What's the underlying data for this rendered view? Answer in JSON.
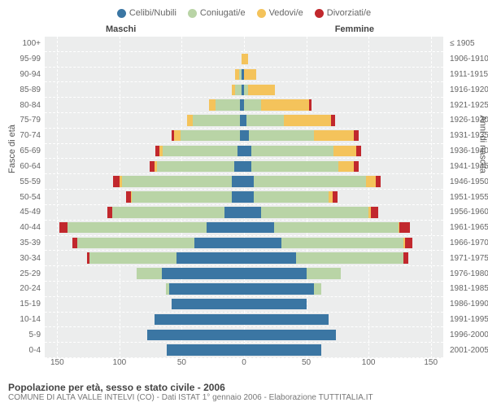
{
  "legend": {
    "items": [
      {
        "label": "Celibi/Nubili",
        "color": "#3b76a3"
      },
      {
        "label": "Coniugati/e",
        "color": "#b9d4a6"
      },
      {
        "label": "Vedovi/e",
        "color": "#f4c35b"
      },
      {
        "label": "Divorziati/e",
        "color": "#c1282d"
      }
    ]
  },
  "headers": {
    "male": "Maschi",
    "female": "Femmine"
  },
  "axis": {
    "left_title": "Fasce di età",
    "right_title": "Anni di nascita",
    "x_ticks": [
      -150,
      -100,
      -50,
      0,
      50,
      100,
      150
    ],
    "x_labels": [
      "150",
      "100",
      "50",
      "0",
      "50",
      "100",
      "150"
    ],
    "xlim": 160,
    "grid_values": [
      -150,
      -100,
      -50,
      0,
      50,
      100,
      150
    ],
    "background": "#eceded",
    "gridline_color": "#ffffff"
  },
  "rows": [
    {
      "age": "100+",
      "birth": "≤ 1905",
      "m": [
        0,
        0,
        0,
        0
      ],
      "f": [
        0,
        0,
        0,
        0
      ]
    },
    {
      "age": "95-99",
      "birth": "1906-1910",
      "m": [
        0,
        0,
        2,
        0
      ],
      "f": [
        0,
        0,
        3,
        0
      ]
    },
    {
      "age": "90-94",
      "birth": "1911-1915",
      "m": [
        2,
        2,
        3,
        0
      ],
      "f": [
        0,
        0,
        10,
        0
      ]
    },
    {
      "age": "85-89",
      "birth": "1916-1920",
      "m": [
        2,
        5,
        3,
        0
      ],
      "f": [
        0,
        3,
        22,
        0
      ]
    },
    {
      "age": "80-84",
      "birth": "1921-1925",
      "m": [
        3,
        20,
        5,
        0
      ],
      "f": [
        0,
        14,
        38,
        2
      ]
    },
    {
      "age": "75-79",
      "birth": "1926-1930",
      "m": [
        3,
        38,
        5,
        0
      ],
      "f": [
        2,
        30,
        38,
        3
      ]
    },
    {
      "age": "70-74",
      "birth": "1931-1935",
      "m": [
        3,
        48,
        5,
        2
      ],
      "f": [
        4,
        52,
        32,
        4
      ]
    },
    {
      "age": "65-69",
      "birth": "1936-1940",
      "m": [
        5,
        60,
        3,
        3
      ],
      "f": [
        6,
        66,
        18,
        4
      ]
    },
    {
      "age": "60-64",
      "birth": "1941-1945",
      "m": [
        8,
        62,
        2,
        4
      ],
      "f": [
        6,
        70,
        12,
        4
      ]
    },
    {
      "age": "55-59",
      "birth": "1946-1950",
      "m": [
        10,
        88,
        2,
        5
      ],
      "f": [
        8,
        90,
        8,
        4
      ]
    },
    {
      "age": "50-54",
      "birth": "1951-1955",
      "m": [
        10,
        80,
        1,
        4
      ],
      "f": [
        8,
        60,
        3,
        4
      ]
    },
    {
      "age": "45-49",
      "birth": "1956-1960",
      "m": [
        16,
        90,
        0,
        4
      ],
      "f": [
        14,
        86,
        2,
        6
      ]
    },
    {
      "age": "40-44",
      "birth": "1961-1965",
      "m": [
        30,
        112,
        0,
        6
      ],
      "f": [
        24,
        100,
        1,
        8
      ]
    },
    {
      "age": "35-39",
      "birth": "1966-1970",
      "m": [
        40,
        94,
        0,
        4
      ],
      "f": [
        30,
        98,
        1,
        6
      ]
    },
    {
      "age": "30-34",
      "birth": "1971-1975",
      "m": [
        54,
        70,
        0,
        2
      ],
      "f": [
        42,
        86,
        0,
        4
      ]
    },
    {
      "age": "25-29",
      "birth": "1976-1980",
      "m": [
        66,
        20,
        0,
        0
      ],
      "f": [
        50,
        28,
        0,
        0
      ]
    },
    {
      "age": "20-24",
      "birth": "1981-1985",
      "m": [
        60,
        3,
        0,
        0
      ],
      "f": [
        56,
        6,
        0,
        0
      ]
    },
    {
      "age": "15-19",
      "birth": "1986-1990",
      "m": [
        58,
        0,
        0,
        0
      ],
      "f": [
        50,
        0,
        0,
        0
      ]
    },
    {
      "age": "10-14",
      "birth": "1991-1995",
      "m": [
        72,
        0,
        0,
        0
      ],
      "f": [
        68,
        0,
        0,
        0
      ]
    },
    {
      "age": "5-9",
      "birth": "1996-2000",
      "m": [
        78,
        0,
        0,
        0
      ],
      "f": [
        74,
        0,
        0,
        0
      ]
    },
    {
      "age": "0-4",
      "birth": "2001-2005",
      "m": [
        62,
        0,
        0,
        0
      ],
      "f": [
        62,
        0,
        0,
        0
      ]
    }
  ],
  "footer": {
    "title": "Popolazione per età, sesso e stato civile - 2006",
    "sub": "COMUNE DI ALTA VALLE INTELVI (CO) - Dati ISTAT 1° gennaio 2006 - Elaborazione TUTTITALIA.IT"
  },
  "chart_type": "population-pyramid"
}
